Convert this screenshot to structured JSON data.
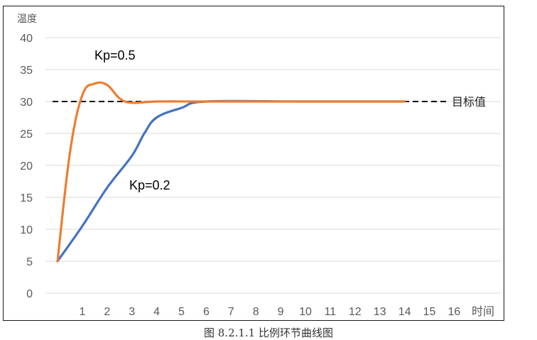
{
  "chart_data": {
    "type": "line",
    "ylabel": "温度",
    "xlabel": "时间",
    "x_ticks": [
      1,
      2,
      3,
      4,
      5,
      6,
      7,
      8,
      9,
      10,
      11,
      12,
      13,
      14,
      15,
      16
    ],
    "y_ticks": [
      0,
      5,
      10,
      15,
      20,
      25,
      30,
      35,
      40
    ],
    "xlim": [
      0,
      17
    ],
    "ylim": [
      0,
      40
    ],
    "grid": "horizontal",
    "target": {
      "value": 30,
      "label": "目标值",
      "style": "dashed"
    },
    "series": [
      {
        "name": "Kp=0.5",
        "color": "#ED7D31",
        "points": [
          [
            0,
            5
          ],
          [
            0.5,
            22
          ],
          [
            1,
            31
          ],
          [
            1.5,
            32.8
          ],
          [
            2,
            32.6
          ],
          [
            2.5,
            30.5
          ],
          [
            3,
            29.8
          ],
          [
            4,
            30
          ],
          [
            6,
            30
          ],
          [
            10,
            30
          ],
          [
            14,
            30
          ]
        ]
      },
      {
        "name": "Kp=0.2",
        "color": "#4472C4",
        "points": [
          [
            0,
            5
          ],
          [
            1,
            10.5
          ],
          [
            2,
            16.5
          ],
          [
            3,
            21.5
          ],
          [
            3.5,
            25
          ],
          [
            4,
            27.5
          ],
          [
            5,
            29
          ],
          [
            6,
            30
          ],
          [
            10,
            30
          ],
          [
            14,
            30
          ]
        ]
      }
    ]
  },
  "caption": "图 8.2.1.1  比例环节曲线图"
}
